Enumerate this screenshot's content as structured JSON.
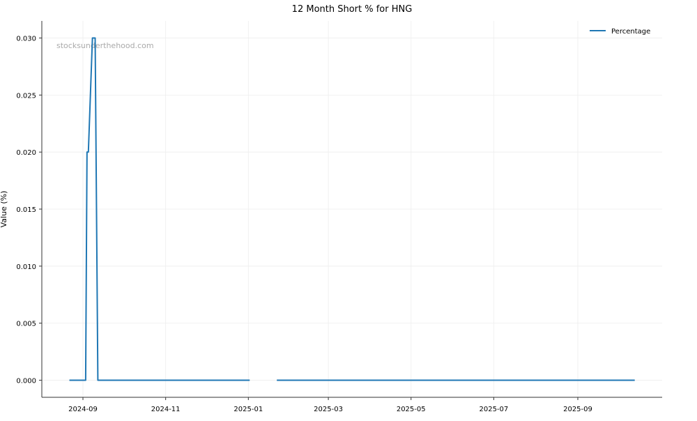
{
  "chart_data": {
    "type": "line",
    "title": "12 Month Short % for HNG",
    "xlabel": "",
    "ylabel": "Value (%)",
    "watermark": "stocksunderthehood.com",
    "ylim": [
      -0.0015,
      0.0315
    ],
    "xlim": [
      "2024-08-03",
      "2025-10-30"
    ],
    "yticks": [
      "0.000",
      "0.005",
      "0.010",
      "0.015",
      "0.020",
      "0.025",
      "0.030"
    ],
    "xticks": [
      "2024-09",
      "2024-11",
      "2025-01",
      "2025-03",
      "2025-05",
      "2025-07",
      "2025-09"
    ],
    "grid": true,
    "legend_position": "top-right",
    "series": [
      {
        "name": "Percentage",
        "color": "#1f77b4",
        "points": [
          [
            "2024-08-22",
            0
          ],
          [
            "2024-09-03",
            0
          ],
          [
            "2024-09-04",
            0.02
          ],
          [
            "2024-09-05",
            0.02
          ],
          [
            "2024-09-08",
            0.03
          ],
          [
            "2024-09-10",
            0.03
          ],
          [
            "2024-09-12",
            0
          ],
          [
            "2025-01-02",
            0
          ],
          [
            "2025-01-12",
            null
          ],
          [
            "2025-01-22",
            0
          ],
          [
            "2025-10-13",
            0
          ]
        ]
      }
    ]
  }
}
